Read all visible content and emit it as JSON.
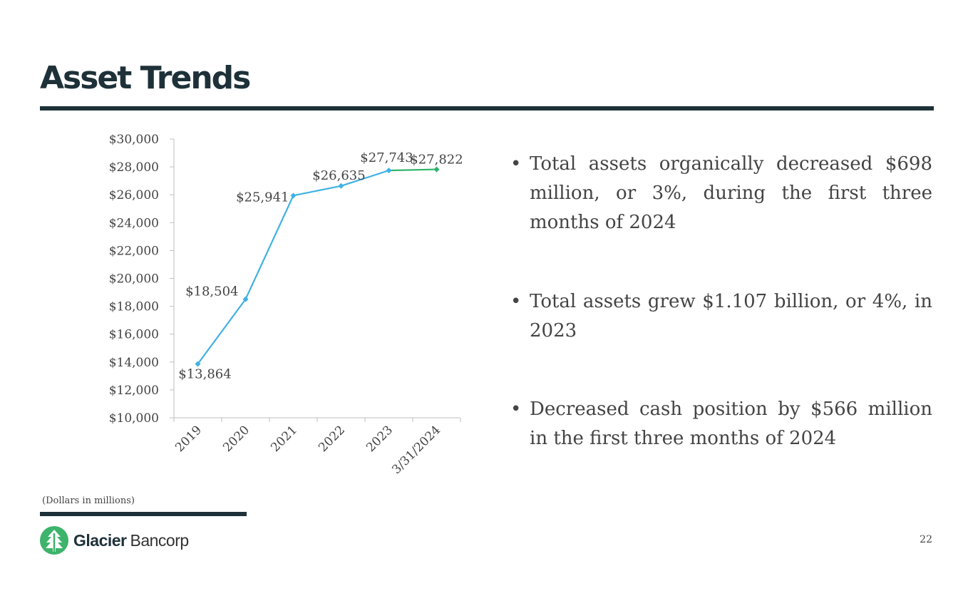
{
  "slide": {
    "title": "Asset Trends",
    "footnote": "(Dollars in millions)",
    "page_number": "22",
    "brand": {
      "name_strong": "Glacier",
      "name_light": "Bancorp",
      "color": "#1e3139",
      "logo_green": "#3db36b"
    }
  },
  "bullets": [
    "Total assets organically decreased $698 million, or 3%, during the first three months of 2024",
    "Total assets grew $1.107 billion, or 4%, in 2023",
    "Decreased cash position by $566  million in the first three months of 2024"
  ],
  "chart_data": {
    "type": "line",
    "categories": [
      "2019",
      "2020",
      "2021",
      "2022",
      "2023",
      "3/31/2024"
    ],
    "values": [
      13864,
      18504,
      25941,
      26635,
      27743,
      27822
    ],
    "data_labels": [
      "$13,864",
      "$18,504",
      "$25,941",
      "$26,635",
      "$27,743",
      "$27,822"
    ],
    "y_tick_labels": [
      "$10,000",
      "$12,000",
      "$14,000",
      "$16,000",
      "$18,000",
      "$20,000",
      "$22,000",
      "$24,000",
      "$26,000",
      "$28,000",
      "$30,000"
    ],
    "ylim": [
      10000,
      30000
    ],
    "y_step": 2000,
    "series_colors": {
      "main": "#3fb1e3",
      "last_segment": "#2fb36b"
    },
    "title": "",
    "xlabel": "",
    "ylabel": "",
    "grid": false
  }
}
